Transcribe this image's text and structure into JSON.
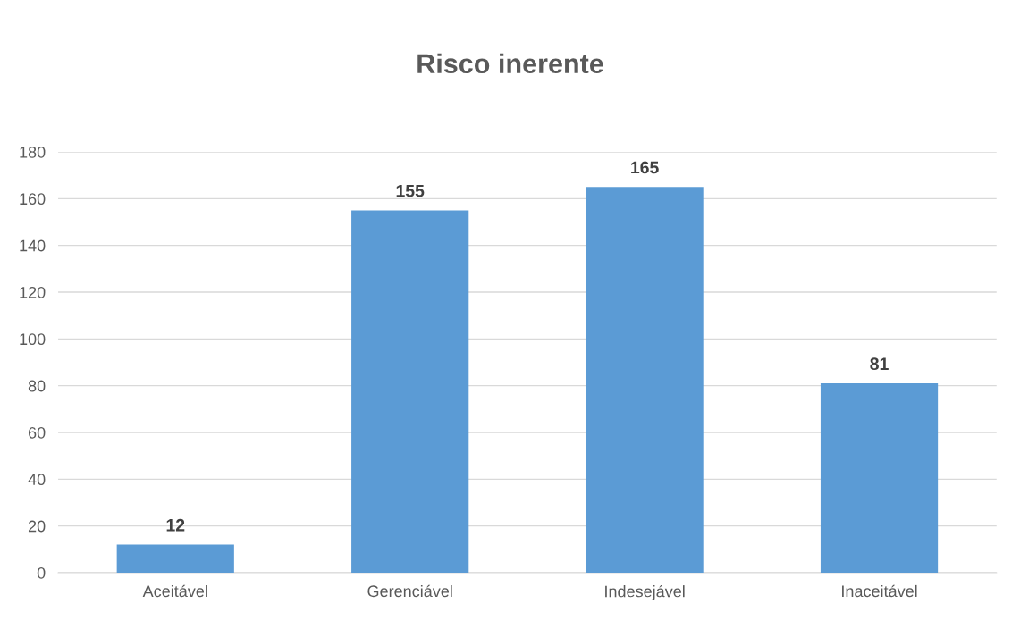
{
  "chart_data": {
    "type": "bar",
    "title": "Risco inerente",
    "categories": [
      "Aceitável",
      "Gerenciável",
      "Indesejável",
      "Inaceitável"
    ],
    "values": [
      12,
      155,
      165,
      81
    ],
    "color": "#5b9bd5",
    "ylim": [
      0,
      180
    ],
    "yticks": [
      0,
      20,
      40,
      60,
      80,
      100,
      120,
      140,
      160,
      180
    ],
    "grid": "y",
    "data_labels": true,
    "legend": false
  }
}
